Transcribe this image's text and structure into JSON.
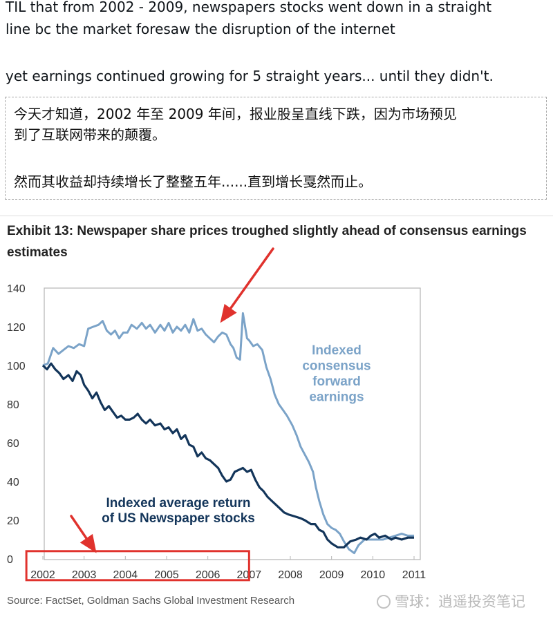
{
  "post": {
    "line1": "TIL that from 2002 - 2009, newspapers stocks went down in a straight",
    "line2": "line bc the market foresaw the disruption of the internet",
    "line3": "yet earnings continued growing for 5 straight years... until they didn't."
  },
  "translation": {
    "line1": "今天才知道，2002 年至 2009 年间，报业股呈直线下跌，因为市场预见",
    "line2": "到了互联网带来的颠覆。",
    "line3": "然而其收益却持续增长了整整五年......直到增长戛然而止。"
  },
  "chart_data": {
    "type": "line",
    "title": "Exhibit 13: Newspaper share prices troughed slightly ahead of consensus earnings estimates",
    "source": "Source: FactSet, Goldman Sachs Global Investment Research",
    "ylim": [
      0,
      140
    ],
    "xlim": [
      2002,
      2011
    ],
    "y_ticks": [
      "0",
      "20",
      "40",
      "60",
      "80",
      "100",
      "120",
      "140"
    ],
    "x_ticks": [
      "2002",
      "2003",
      "2004",
      "2005",
      "2006",
      "2007",
      "2008",
      "2009",
      "2010",
      "2011"
    ],
    "grid": false,
    "series": [
      {
        "name": "Indexed consensus forward earnings",
        "label_lines": [
          "Indexed",
          "consensus",
          "forward",
          "earnings"
        ],
        "color": "#7ba3c8",
        "points": [
          [
            2002.0,
            100
          ],
          [
            2002.12,
            101
          ],
          [
            2002.25,
            109
          ],
          [
            2002.38,
            106
          ],
          [
            2002.5,
            108
          ],
          [
            2002.62,
            110
          ],
          [
            2002.75,
            109
          ],
          [
            2002.88,
            111
          ],
          [
            2003.0,
            110
          ],
          [
            2003.1,
            119
          ],
          [
            2003.22,
            120
          ],
          [
            2003.35,
            121
          ],
          [
            2003.45,
            123
          ],
          [
            2003.55,
            118
          ],
          [
            2003.65,
            116
          ],
          [
            2003.75,
            118
          ],
          [
            2003.85,
            114
          ],
          [
            2003.95,
            117
          ],
          [
            2004.05,
            117
          ],
          [
            2004.15,
            121
          ],
          [
            2004.28,
            119
          ],
          [
            2004.4,
            122
          ],
          [
            2004.5,
            119
          ],
          [
            2004.6,
            121
          ],
          [
            2004.72,
            117
          ],
          [
            2004.85,
            121
          ],
          [
            2004.95,
            118
          ],
          [
            2005.05,
            122
          ],
          [
            2005.15,
            117
          ],
          [
            2005.25,
            120
          ],
          [
            2005.35,
            118
          ],
          [
            2005.45,
            121
          ],
          [
            2005.55,
            117
          ],
          [
            2005.65,
            124
          ],
          [
            2005.75,
            118
          ],
          [
            2005.85,
            119
          ],
          [
            2005.95,
            116
          ],
          [
            2006.05,
            114
          ],
          [
            2006.15,
            112
          ],
          [
            2006.25,
            115
          ],
          [
            2006.35,
            117
          ],
          [
            2006.45,
            116
          ],
          [
            2006.55,
            111
          ],
          [
            2006.62,
            109
          ],
          [
            2006.7,
            104
          ],
          [
            2006.78,
            103
          ],
          [
            2006.85,
            127
          ],
          [
            2006.95,
            114
          ],
          [
            2007.0,
            113
          ],
          [
            2007.1,
            110
          ],
          [
            2007.2,
            111
          ],
          [
            2007.32,
            108
          ],
          [
            2007.42,
            99
          ],
          [
            2007.52,
            93
          ],
          [
            2007.62,
            85
          ],
          [
            2007.72,
            80
          ],
          [
            2007.82,
            77
          ],
          [
            2007.92,
            74
          ],
          [
            2008.05,
            69
          ],
          [
            2008.15,
            64
          ],
          [
            2008.25,
            58
          ],
          [
            2008.35,
            54
          ],
          [
            2008.45,
            50
          ],
          [
            2008.55,
            45
          ],
          [
            2008.62,
            37
          ],
          [
            2008.7,
            30
          ],
          [
            2008.8,
            23
          ],
          [
            2008.9,
            18
          ],
          [
            2009.0,
            16
          ],
          [
            2009.1,
            15
          ],
          [
            2009.2,
            13
          ],
          [
            2009.3,
            9
          ],
          [
            2009.42,
            5
          ],
          [
            2009.55,
            3
          ],
          [
            2009.65,
            7
          ],
          [
            2009.8,
            10
          ],
          [
            2009.95,
            10
          ],
          [
            2010.1,
            10
          ],
          [
            2010.25,
            10
          ],
          [
            2010.4,
            11
          ],
          [
            2010.55,
            12
          ],
          [
            2010.7,
            13
          ],
          [
            2010.85,
            12
          ],
          [
            2011.0,
            12
          ]
        ]
      },
      {
        "name": "Indexed average return of US Newspaper stocks",
        "label_lines": [
          "Indexed average return",
          "of US Newspaper stocks"
        ],
        "color": "#13355a",
        "points": [
          [
            2002.0,
            100
          ],
          [
            2002.1,
            98
          ],
          [
            2002.2,
            101
          ],
          [
            2002.3,
            98
          ],
          [
            2002.4,
            96
          ],
          [
            2002.5,
            93
          ],
          [
            2002.62,
            95
          ],
          [
            2002.72,
            92
          ],
          [
            2002.82,
            97
          ],
          [
            2002.92,
            95
          ],
          [
            2003.0,
            90
          ],
          [
            2003.1,
            87
          ],
          [
            2003.2,
            83
          ],
          [
            2003.3,
            86
          ],
          [
            2003.4,
            81
          ],
          [
            2003.5,
            77
          ],
          [
            2003.6,
            79
          ],
          [
            2003.7,
            76
          ],
          [
            2003.8,
            73
          ],
          [
            2003.9,
            74
          ],
          [
            2004.0,
            72
          ],
          [
            2004.1,
            72
          ],
          [
            2004.2,
            73
          ],
          [
            2004.3,
            75
          ],
          [
            2004.4,
            72
          ],
          [
            2004.5,
            70
          ],
          [
            2004.6,
            72
          ],
          [
            2004.72,
            69
          ],
          [
            2004.85,
            70
          ],
          [
            2004.95,
            67
          ],
          [
            2005.05,
            68
          ],
          [
            2005.15,
            65
          ],
          [
            2005.25,
            67
          ],
          [
            2005.35,
            62
          ],
          [
            2005.45,
            64
          ],
          [
            2005.55,
            59
          ],
          [
            2005.65,
            58
          ],
          [
            2005.75,
            53
          ],
          [
            2005.85,
            55
          ],
          [
            2005.95,
            52
          ],
          [
            2006.05,
            51
          ],
          [
            2006.15,
            49
          ],
          [
            2006.25,
            47
          ],
          [
            2006.35,
            43
          ],
          [
            2006.45,
            40
          ],
          [
            2006.55,
            41
          ],
          [
            2006.65,
            45
          ],
          [
            2006.75,
            46
          ],
          [
            2006.85,
            47
          ],
          [
            2006.95,
            45
          ],
          [
            2007.05,
            46
          ],
          [
            2007.15,
            41
          ],
          [
            2007.25,
            37
          ],
          [
            2007.35,
            35
          ],
          [
            2007.45,
            32
          ],
          [
            2007.55,
            30
          ],
          [
            2007.65,
            28
          ],
          [
            2007.75,
            26
          ],
          [
            2007.85,
            24
          ],
          [
            2007.95,
            23
          ],
          [
            2008.1,
            22
          ],
          [
            2008.25,
            21
          ],
          [
            2008.35,
            20
          ],
          [
            2008.5,
            18
          ],
          [
            2008.6,
            18
          ],
          [
            2008.7,
            15
          ],
          [
            2008.8,
            14
          ],
          [
            2008.9,
            10
          ],
          [
            2009.0,
            8
          ],
          [
            2009.15,
            6
          ],
          [
            2009.3,
            6
          ],
          [
            2009.45,
            9
          ],
          [
            2009.6,
            10
          ],
          [
            2009.7,
            11
          ],
          [
            2009.85,
            10
          ],
          [
            2009.95,
            12
          ],
          [
            2010.05,
            13
          ],
          [
            2010.15,
            11
          ],
          [
            2010.3,
            12
          ],
          [
            2010.45,
            10
          ],
          [
            2010.55,
            11
          ],
          [
            2010.7,
            10
          ],
          [
            2010.85,
            11
          ],
          [
            2011.0,
            11
          ]
        ]
      }
    ],
    "annotations": [
      {
        "type": "arrow",
        "target_x": 2006.3,
        "target_y": 122,
        "color": "#e0322d"
      },
      {
        "type": "arrow",
        "target_x": 2003.3,
        "target_y": 3,
        "color": "#e0322d"
      },
      {
        "type": "highlight-box",
        "x_range": [
          2001.6,
          2007.0
        ],
        "y_range": [
          -11,
          4
        ],
        "color": "#e0322d"
      }
    ]
  },
  "watermark": "雪球：逍遥投资笔记"
}
